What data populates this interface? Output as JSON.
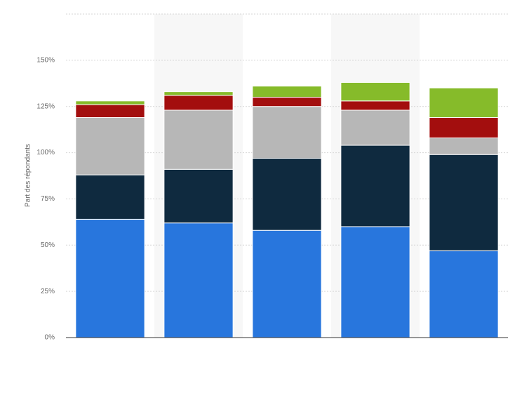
{
  "chart_data": {
    "type": "stacked-bar",
    "y_label": "Part des répondants",
    "categories": [
      null,
      null,
      null,
      null,
      null
    ],
    "series": [
      {
        "color": "#2876dd",
        "values": [
          64,
          62,
          58,
          60,
          47
        ]
      },
      {
        "color": "#0f2a3f",
        "values": [
          24,
          29,
          39,
          44,
          52
        ]
      },
      {
        "color": "#b7b7b7",
        "values": [
          31,
          32,
          28,
          19,
          9
        ]
      },
      {
        "color": "#a30e0e",
        "values": [
          7,
          8,
          5,
          5,
          11
        ]
      },
      {
        "color": "#86bb2a",
        "values": [
          2,
          2,
          6,
          10,
          16
        ]
      }
    ],
    "ylim": [
      0,
      175
    ],
    "yticks": [
      {
        "value": 0,
        "label": "0%"
      },
      {
        "value": 25,
        "label": "25%"
      },
      {
        "value": 50,
        "label": "50%"
      },
      {
        "value": 75,
        "label": "75%"
      },
      {
        "value": 100,
        "label": "100%"
      },
      {
        "value": 125,
        "label": "125%"
      },
      {
        "value": 150,
        "label": "150%"
      }
    ],
    "grid": true
  }
}
